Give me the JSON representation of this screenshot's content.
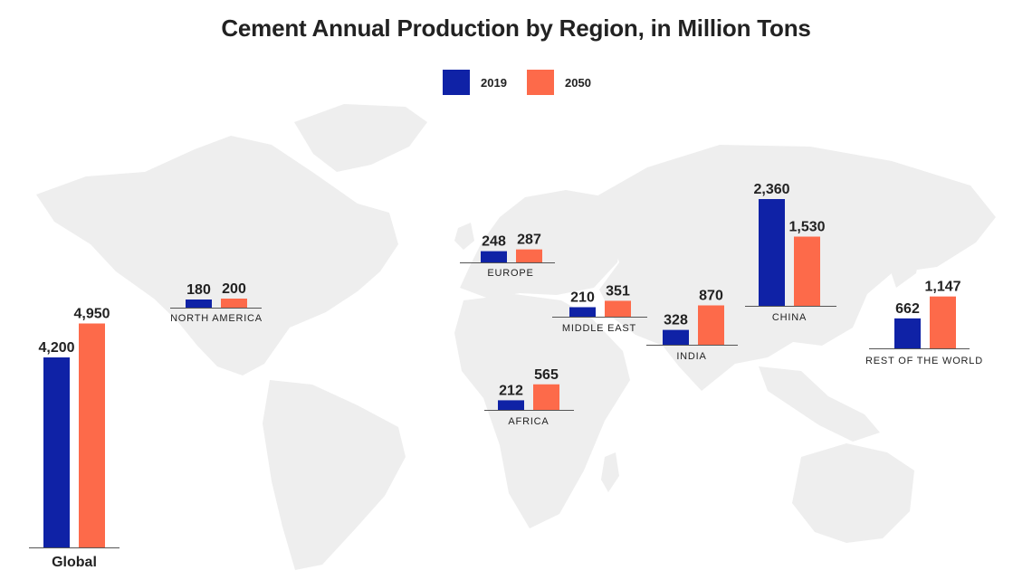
{
  "title": "Cement Annual Production by Region, in Million Tons",
  "legend": [
    {
      "label": "2019",
      "color": "#0f22a6"
    },
    {
      "label": "2050",
      "color": "#fd6a4a"
    }
  ],
  "colors": {
    "map_land": "#eeeeee",
    "baseline": "#555555"
  },
  "chart_data": {
    "type": "bar",
    "title": "Cement Annual Production by Region, in Million Tons",
    "series": [
      {
        "name": "2019",
        "color": "#0f22a6",
        "values": [
          4200,
          180,
          248,
          210,
          212,
          328,
          2360,
          662
        ]
      },
      {
        "name": "2050",
        "color": "#fd6a4a",
        "values": [
          4950,
          200,
          287,
          351,
          565,
          870,
          1530,
          1147
        ]
      }
    ],
    "categories": [
      "Global",
      "NORTH AMERICA",
      "EUROPE",
      "MIDDLE EAST",
      "AFRICA",
      "INDIA",
      "CHINA",
      "REST OF THE WORLD"
    ],
    "value_labels": [
      [
        "4,200",
        "4,950"
      ],
      [
        "180",
        "200"
      ],
      [
        "248",
        "287"
      ],
      [
        "210",
        "351"
      ],
      [
        "212",
        "565"
      ],
      [
        "328",
        "870"
      ],
      [
        "2,360",
        "1,530"
      ],
      [
        "662",
        "1,147"
      ]
    ],
    "unit": "Million Tons",
    "legend_position": "top-center",
    "grid": false
  }
}
